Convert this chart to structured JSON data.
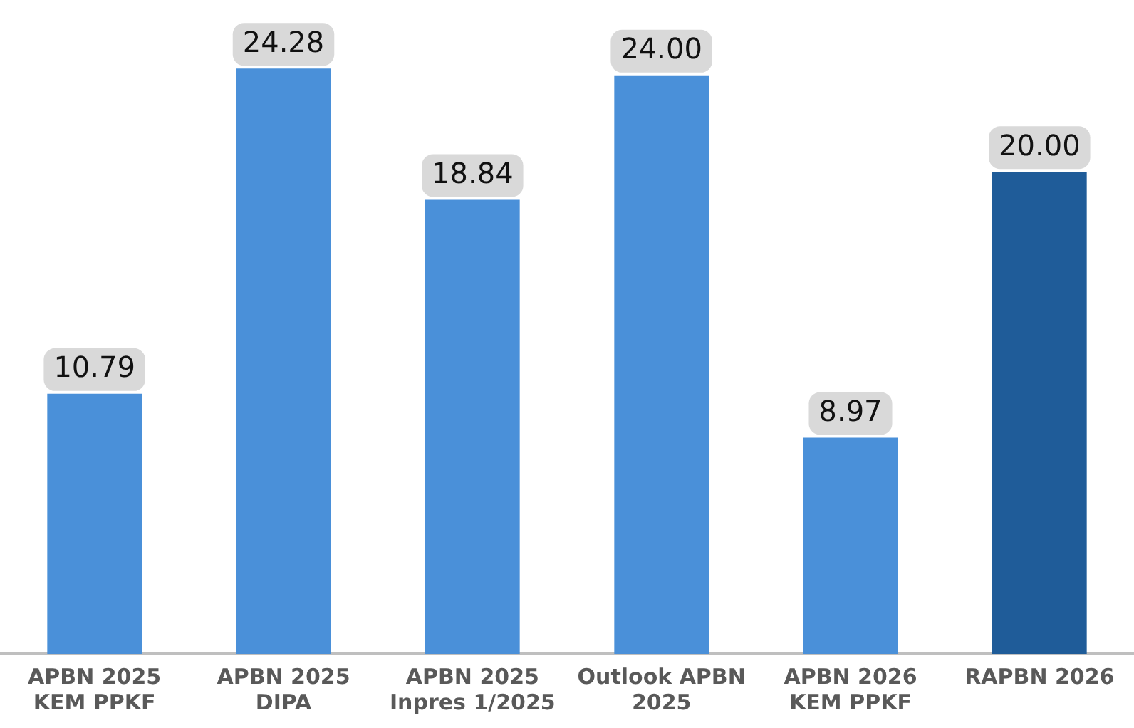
{
  "chart_data": {
    "type": "bar",
    "categories": [
      "APBN 2025 KEM PPKF",
      "APBN 2025 DIPA",
      "APBN 2025 Inpres 1/2025",
      "Outlook APBN 2025",
      "APBN 2026 KEM PPKF",
      "RAPBN 2026"
    ],
    "values": [
      10.79,
      24.28,
      18.84,
      24.0,
      8.97,
      20.0
    ],
    "colors": [
      "#4a90d9",
      "#4a90d9",
      "#4a90d9",
      "#4a90d9",
      "#4a90d9",
      "#1f5c99"
    ],
    "value_labels": [
      "10.79",
      "24.28",
      "18.84",
      "24.00",
      "8.97",
      "20.00"
    ],
    "grid": false,
    "legend": false
  }
}
